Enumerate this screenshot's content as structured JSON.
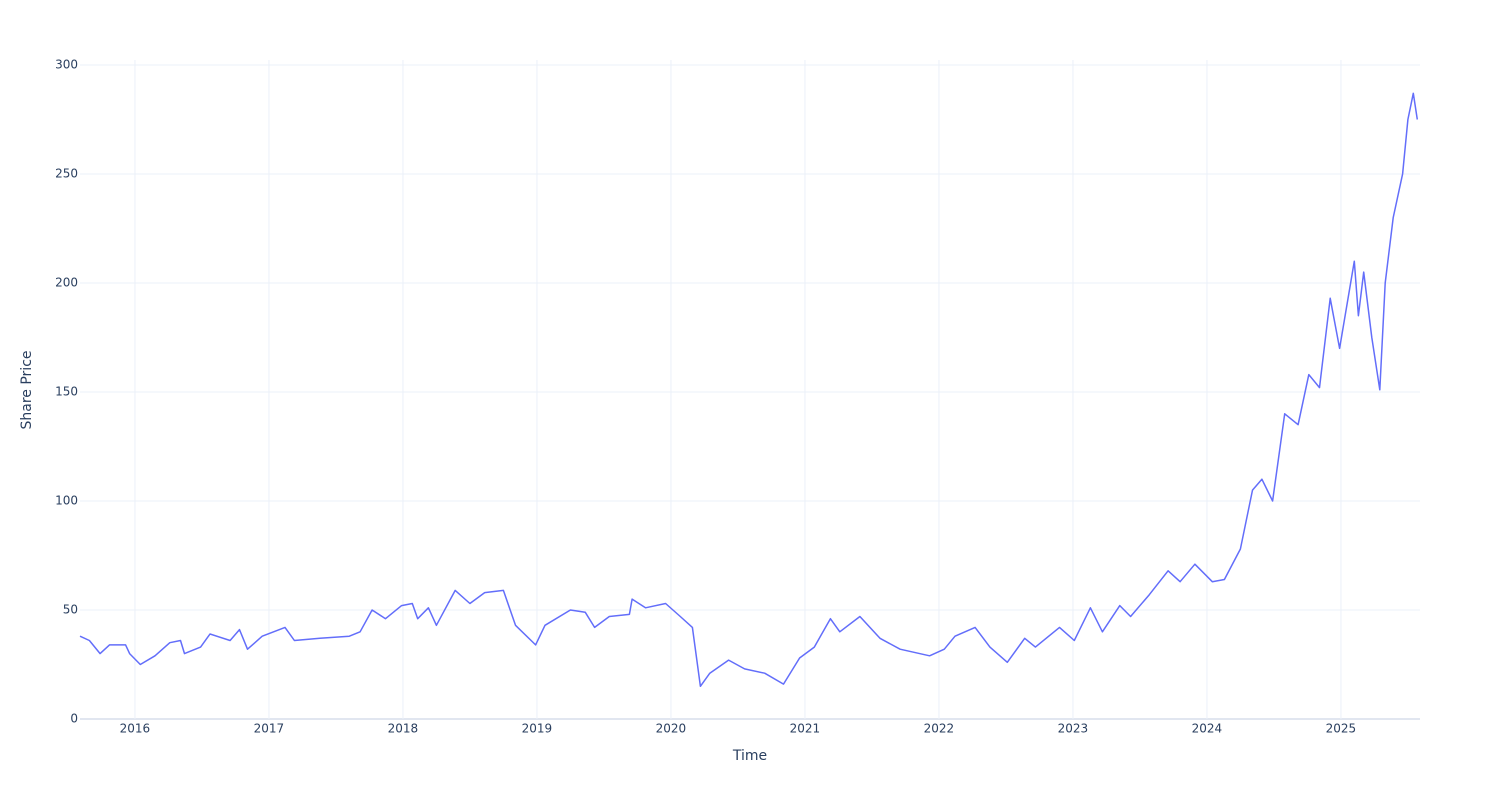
{
  "chart_data": {
    "type": "line",
    "xlabel": "Time",
    "ylabel": "Share Price",
    "x": [
      2015.59,
      2015.66,
      2015.74,
      2015.81,
      2015.93,
      2015.96,
      2016.04,
      2016.15,
      2016.26,
      2016.34,
      2016.37,
      2016.49,
      2016.56,
      2016.71,
      2016.78,
      2016.84,
      2016.95,
      2017.12,
      2017.19,
      2017.38,
      2017.6,
      2017.68,
      2017.77,
      2017.87,
      2017.99,
      2018.07,
      2018.11,
      2018.19,
      2018.25,
      2018.39,
      2018.5,
      2018.61,
      2018.75,
      2018.84,
      2018.99,
      2019.06,
      2019.25,
      2019.36,
      2019.43,
      2019.54,
      2019.69,
      2019.71,
      2019.81,
      2019.96,
      2020.07,
      2020.16,
      2020.22,
      2020.29,
      2020.43,
      2020.55,
      2020.7,
      2020.84,
      2020.96,
      2021.07,
      2021.19,
      2021.26,
      2021.41,
      2021.56,
      2021.71,
      2021.93,
      2022.04,
      2022.12,
      2022.27,
      2022.38,
      2022.51,
      2022.64,
      2022.72,
      2022.9,
      2023.01,
      2023.13,
      2023.22,
      2023.35,
      2023.43,
      2023.57,
      2023.71,
      2023.8,
      2023.91,
      2024.04,
      2024.13,
      2024.25,
      2024.34,
      2024.41,
      2024.49,
      2024.58,
      2024.68,
      2024.76,
      2024.84,
      2024.92,
      2024.99,
      2025.1,
      2025.13,
      2025.17,
      2025.23,
      2025.29,
      2025.33,
      2025.39,
      2025.46,
      2025.5,
      2025.54,
      2025.57
    ],
    "series": [
      {
        "name": "Share Price",
        "color": "#636efa",
        "values": [
          38,
          36,
          30,
          34,
          34,
          30,
          25,
          29,
          35,
          36,
          30,
          33,
          39,
          36,
          41,
          32,
          38,
          42,
          36,
          37,
          38,
          40,
          50,
          46,
          52,
          53,
          46,
          51,
          43,
          59,
          53,
          58,
          59,
          43,
          34,
          43,
          50,
          49,
          42,
          47,
          48,
          55,
          51,
          53,
          47,
          42,
          15,
          21,
          27,
          23,
          21,
          16,
          28,
          33,
          46,
          40,
          47,
          37,
          32,
          29,
          32,
          38,
          42,
          33,
          26,
          37,
          33,
          42,
          36,
          51,
          40,
          52,
          47,
          57,
          68,
          63,
          71,
          63,
          64,
          78,
          105,
          110,
          100,
          140,
          135,
          158,
          152,
          193,
          170,
          210,
          185,
          205,
          175,
          151,
          200,
          230,
          250,
          275,
          287,
          275
        ]
      }
    ],
    "xlim": [
      2015.59,
      2025.59
    ],
    "ylim": [
      0,
      300
    ],
    "xticks": [
      2016,
      2017,
      2018,
      2019,
      2020,
      2021,
      2022,
      2023,
      2024,
      2025
    ],
    "yticks": [
      0,
      50,
      100,
      150,
      200,
      250,
      300
    ],
    "grid": true
  }
}
